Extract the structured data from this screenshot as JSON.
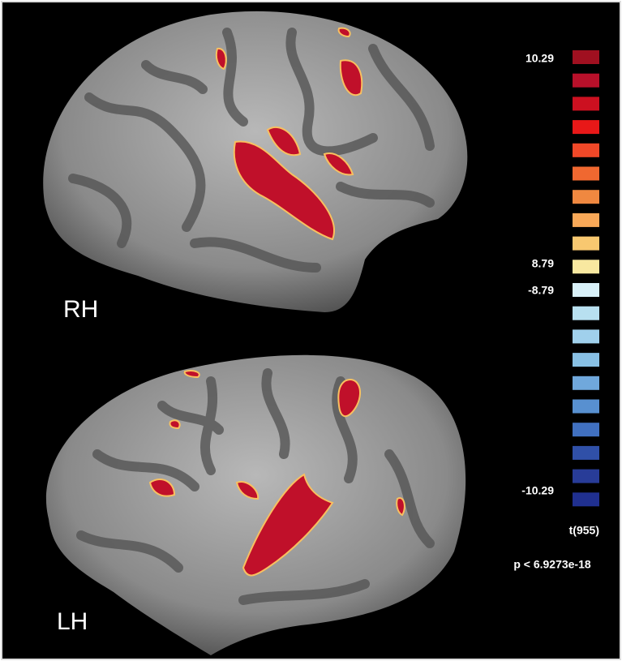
{
  "hemispheres": {
    "right": "RH",
    "left": "LH"
  },
  "colorbar": {
    "ticks": [
      "10.29",
      "8.79",
      "-8.79",
      "-10.29"
    ],
    "statistic": "t(955)",
    "threshold": "p < 6.9273e-18"
  }
}
